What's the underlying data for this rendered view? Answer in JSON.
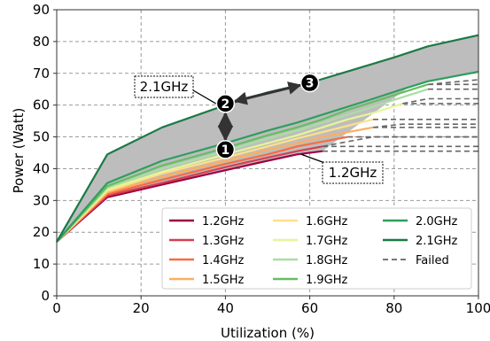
{
  "chart_data": {
    "type": "line",
    "xlabel": "Utilization (%)",
    "ylabel": "Power (Watt)",
    "xlim": [
      0,
      100
    ],
    "ylim": [
      0,
      90
    ],
    "x_ticks": [
      0,
      20,
      40,
      60,
      80,
      100
    ],
    "y_ticks": [
      0,
      10,
      20,
      30,
      40,
      50,
      60,
      70,
      80,
      90
    ],
    "grid": true,
    "grid_style": "dashed",
    "legend_position": "bottom-right",
    "legend_columns": 3,
    "series": [
      {
        "name": "1.2GHz",
        "color": "#9e0142",
        "x": [
          0,
          12,
          25,
          40,
          50,
          57,
          63
        ],
        "y": [
          17,
          31,
          35,
          39.5,
          42.5,
          44.5,
          45.5
        ]
      },
      {
        "name": "1.3GHz",
        "color": "#d53e4f",
        "x": [
          0,
          12,
          25,
          40,
          50,
          57,
          63
        ],
        "y": [
          17,
          31.5,
          35.5,
          40.5,
          43.5,
          45.5,
          47
        ]
      },
      {
        "name": "1.4GHz",
        "color": "#f46d43",
        "x": [
          0,
          12,
          25,
          40,
          50,
          57,
          63,
          69
        ],
        "y": [
          17,
          32,
          36.5,
          41.5,
          44.5,
          47,
          48.5,
          50
        ]
      },
      {
        "name": "1.5GHz",
        "color": "#fdae61",
        "x": [
          0,
          12,
          25,
          40,
          50,
          57,
          63,
          69,
          75
        ],
        "y": [
          17,
          32.5,
          37.5,
          42.5,
          46,
          48,
          50,
          51.5,
          53
        ]
      },
      {
        "name": "1.6GHz",
        "color": "#fee08b",
        "x": [
          0,
          12,
          25,
          40,
          50,
          57,
          63,
          69,
          75
        ],
        "y": [
          17,
          33,
          38.5,
          43.5,
          47,
          49.5,
          51.5,
          53.5,
          55.5
        ]
      },
      {
        "name": "1.7GHz",
        "color": "#e6f598",
        "x": [
          0,
          12,
          25,
          40,
          50,
          57,
          63,
          69,
          75,
          82
        ],
        "y": [
          17,
          33.5,
          39,
          44.5,
          48,
          50.5,
          53,
          55.5,
          57.5,
          60.5
        ]
      },
      {
        "name": "1.8GHz",
        "color": "#abdda4",
        "x": [
          0,
          12,
          25,
          40,
          50,
          57,
          63,
          69,
          75,
          82,
          88
        ],
        "y": [
          17,
          34,
          40,
          45.5,
          49.5,
          52,
          54.5,
          57,
          59.5,
          62.5,
          65
        ]
      },
      {
        "name": "1.9GHz",
        "color": "#66bd63",
        "x": [
          0,
          12,
          25,
          40,
          50,
          57,
          63,
          69,
          75,
          82,
          88
        ],
        "y": [
          17,
          34.5,
          41,
          46.5,
          50.5,
          53,
          55.5,
          58.5,
          61,
          64,
          66.5
        ]
      },
      {
        "name": "2.0GHz",
        "color": "#2e9e5e",
        "x": [
          0,
          12,
          25,
          40,
          50,
          57,
          63,
          69,
          75,
          82,
          88,
          100
        ],
        "y": [
          17,
          35.5,
          42.5,
          48,
          52,
          54.5,
          57,
          59.5,
          62,
          65,
          67.5,
          70.5
        ]
      },
      {
        "name": "2.1GHz",
        "color": "#1b7a47",
        "x": [
          0,
          12,
          25,
          40,
          50,
          60,
          70,
          80,
          88,
          100
        ],
        "y": [
          17,
          44.5,
          53,
          60,
          64,
          67,
          71,
          75,
          78.5,
          82
        ]
      }
    ],
    "failed": {
      "name": "Failed",
      "color": "#666666",
      "segments": [
        {
          "x": [
            63,
            100
          ],
          "y": [
            45.5,
            45.5
          ]
        },
        {
          "x": [
            63,
            100
          ],
          "y": [
            47,
            47
          ]
        },
        {
          "x": [
            69,
            100
          ],
          "y": [
            50,
            50
          ]
        },
        {
          "x": [
            75,
            100
          ],
          "y": [
            53,
            53
          ]
        },
        {
          "x": [
            75,
            100
          ],
          "y": [
            55.5,
            55.5
          ]
        },
        {
          "x": [
            82,
            100
          ],
          "y": [
            60.5,
            60.5
          ]
        },
        {
          "x": [
            88,
            100
          ],
          "y": [
            65,
            65
          ]
        },
        {
          "x": [
            88,
            100
          ],
          "y": [
            66.5,
            66.5
          ]
        },
        {
          "x": [
            63,
            69,
            75,
            100
          ],
          "y": [
            47,
            48.5,
            50,
            50
          ]
        },
        {
          "x": [
            75,
            82,
            100
          ],
          "y": [
            53,
            54,
            54
          ]
        },
        {
          "x": [
            82,
            88,
            100
          ],
          "y": [
            60.5,
            62,
            62
          ]
        },
        {
          "x": [
            88,
            100
          ],
          "y": [
            66.5,
            68
          ]
        }
      ]
    },
    "band_fill": "#bdbdbd",
    "annotations": [
      {
        "text": "2.1GHz",
        "points_to": [
          39,
          59.5
        ]
      },
      {
        "text": "1.2GHz",
        "points_to": [
          58,
          44.5
        ]
      }
    ],
    "markers": [
      {
        "label": "1",
        "x": 40,
        "y": 46
      },
      {
        "label": "2",
        "x": 40,
        "y": 60.5
      },
      {
        "label": "3",
        "x": 60,
        "y": 67
      }
    ]
  }
}
